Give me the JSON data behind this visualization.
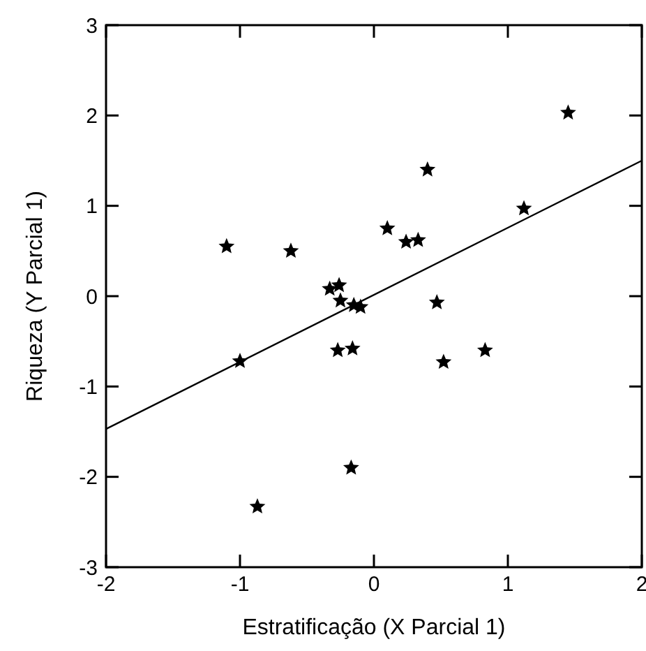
{
  "chart_data": {
    "type": "scatter",
    "xlabel": "Estratificação (X Parcial 1)",
    "ylabel": "Riqueza (Y Parcial 1)",
    "xlim": [
      -2,
      2
    ],
    "ylim": [
      -3,
      3
    ],
    "xticks": [
      -2,
      -1,
      0,
      1,
      2
    ],
    "yticks": [
      -3,
      -2,
      -1,
      0,
      1,
      2,
      3
    ],
    "grid": false,
    "series": [
      {
        "marker": "star",
        "color": "#000000",
        "x": [
          -1.1,
          -0.62,
          -0.33,
          -0.26,
          -0.25,
          -0.15,
          -0.1,
          0.1,
          0.24,
          0.33,
          0.4,
          0.47,
          0.52,
          0.83,
          1.12,
          1.45,
          -1.0,
          -0.27,
          -0.16,
          -0.17,
          -0.87
        ],
        "values": [
          0.55,
          0.5,
          0.08,
          0.12,
          -0.05,
          -0.1,
          -0.12,
          0.75,
          0.6,
          0.62,
          1.4,
          -0.07,
          -0.73,
          -0.6,
          0.97,
          2.03,
          -0.72,
          -0.6,
          -0.58,
          -1.9,
          -2.33
        ]
      },
      {
        "type": "line",
        "color": "#000000",
        "x": [
          -2,
          2
        ],
        "values": [
          -1.47,
          1.5
        ]
      }
    ]
  }
}
